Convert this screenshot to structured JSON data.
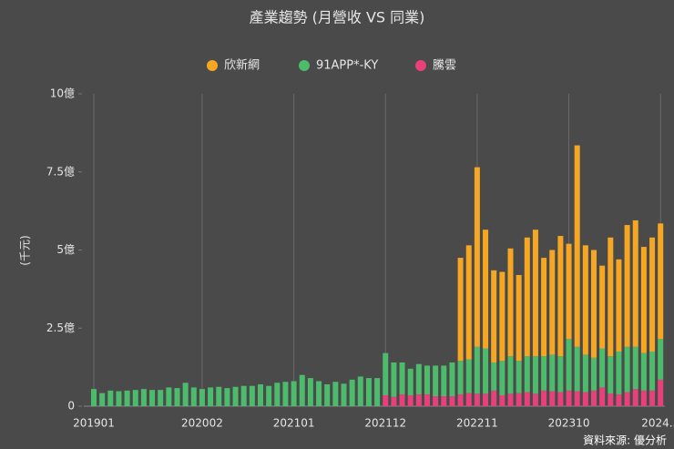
{
  "chart_data": {
    "type": "stacked_bar",
    "title": "產業趨勢 (月營收 VS 同業)",
    "y_label": "(千元)",
    "source": "資料來源: 優分析",
    "categories": [
      "201901",
      null,
      null,
      null,
      null,
      null,
      null,
      null,
      null,
      null,
      null,
      null,
      null,
      "202002",
      null,
      null,
      null,
      null,
      null,
      null,
      null,
      null,
      null,
      null,
      "202101",
      null,
      null,
      null,
      null,
      null,
      null,
      null,
      null,
      null,
      null,
      "202112",
      null,
      null,
      null,
      null,
      null,
      null,
      null,
      null,
      null,
      null,
      "202211",
      null,
      null,
      null,
      null,
      null,
      null,
      null,
      null,
      null,
      null,
      "202310",
      null,
      null,
      null,
      null,
      null,
      null,
      null,
      null,
      null,
      null,
      "2024..."
    ],
    "series": [
      {
        "name": "欣新網",
        "color": "#f5a623",
        "values": [
          null,
          null,
          null,
          null,
          null,
          null,
          null,
          null,
          null,
          null,
          null,
          null,
          null,
          null,
          null,
          null,
          null,
          null,
          null,
          null,
          null,
          null,
          null,
          null,
          null,
          null,
          null,
          null,
          null,
          null,
          null,
          null,
          null,
          null,
          null,
          null,
          null,
          null,
          null,
          null,
          null,
          null,
          null,
          null,
          3.3,
          3.65,
          5.75,
          3.8,
          2.95,
          2.85,
          3.45,
          2.75,
          3.8,
          4.05,
          3.15,
          3.35,
          3.85,
          3.05,
          6.45,
          3.5,
          3.45,
          2.65,
          3.8,
          2.95,
          3.9,
          4.05,
          3.4,
          3.65,
          3.7
        ]
      },
      {
        "name": "91APP*-KY",
        "color": "#4cbb6c",
        "values": [
          0.55,
          0.42,
          0.5,
          0.48,
          0.5,
          0.52,
          0.55,
          0.52,
          0.52,
          0.6,
          0.58,
          0.75,
          0.6,
          0.55,
          0.6,
          0.62,
          0.58,
          0.62,
          0.65,
          0.65,
          0.7,
          0.65,
          0.75,
          0.78,
          0.8,
          1.0,
          0.9,
          0.8,
          0.7,
          0.78,
          0.72,
          0.85,
          0.95,
          0.9,
          0.9,
          1.35,
          1.1,
          1.02,
          0.85,
          0.97,
          0.92,
          0.98,
          0.98,
          1.08,
          1.07,
          1.08,
          1.5,
          1.45,
          0.9,
          1.1,
          1.2,
          1.03,
          1.15,
          1.2,
          1.1,
          1.17,
          1.15,
          1.65,
          1.42,
          1.2,
          1.05,
          1.25,
          1.2,
          1.37,
          1.45,
          1.35,
          1.2,
          1.25,
          1.3
        ]
      },
      {
        "name": "騰雲",
        "color": "#e8407a",
        "values": [
          null,
          null,
          null,
          null,
          null,
          null,
          null,
          null,
          null,
          null,
          null,
          null,
          null,
          null,
          null,
          null,
          null,
          null,
          null,
          null,
          null,
          null,
          null,
          null,
          null,
          null,
          null,
          null,
          null,
          null,
          null,
          null,
          null,
          null,
          null,
          0.35,
          0.3,
          0.38,
          0.35,
          0.38,
          0.38,
          0.32,
          0.32,
          0.32,
          0.38,
          0.42,
          0.4,
          0.4,
          0.5,
          0.35,
          0.4,
          0.42,
          0.45,
          0.4,
          0.5,
          0.48,
          0.45,
          0.5,
          0.48,
          0.45,
          0.5,
          0.6,
          0.4,
          0.38,
          0.45,
          0.55,
          0.5,
          0.5,
          0.85
        ]
      }
    ],
    "ylim": [
      0,
      10
    ],
    "yticks": [
      {
        "value": 0,
        "label": "0"
      },
      {
        "value": 2.5,
        "label": "2.5億"
      },
      {
        "value": 5,
        "label": "5億"
      },
      {
        "value": 7.5,
        "label": "7.5億"
      },
      {
        "value": 10,
        "label": "10億"
      }
    ]
  }
}
